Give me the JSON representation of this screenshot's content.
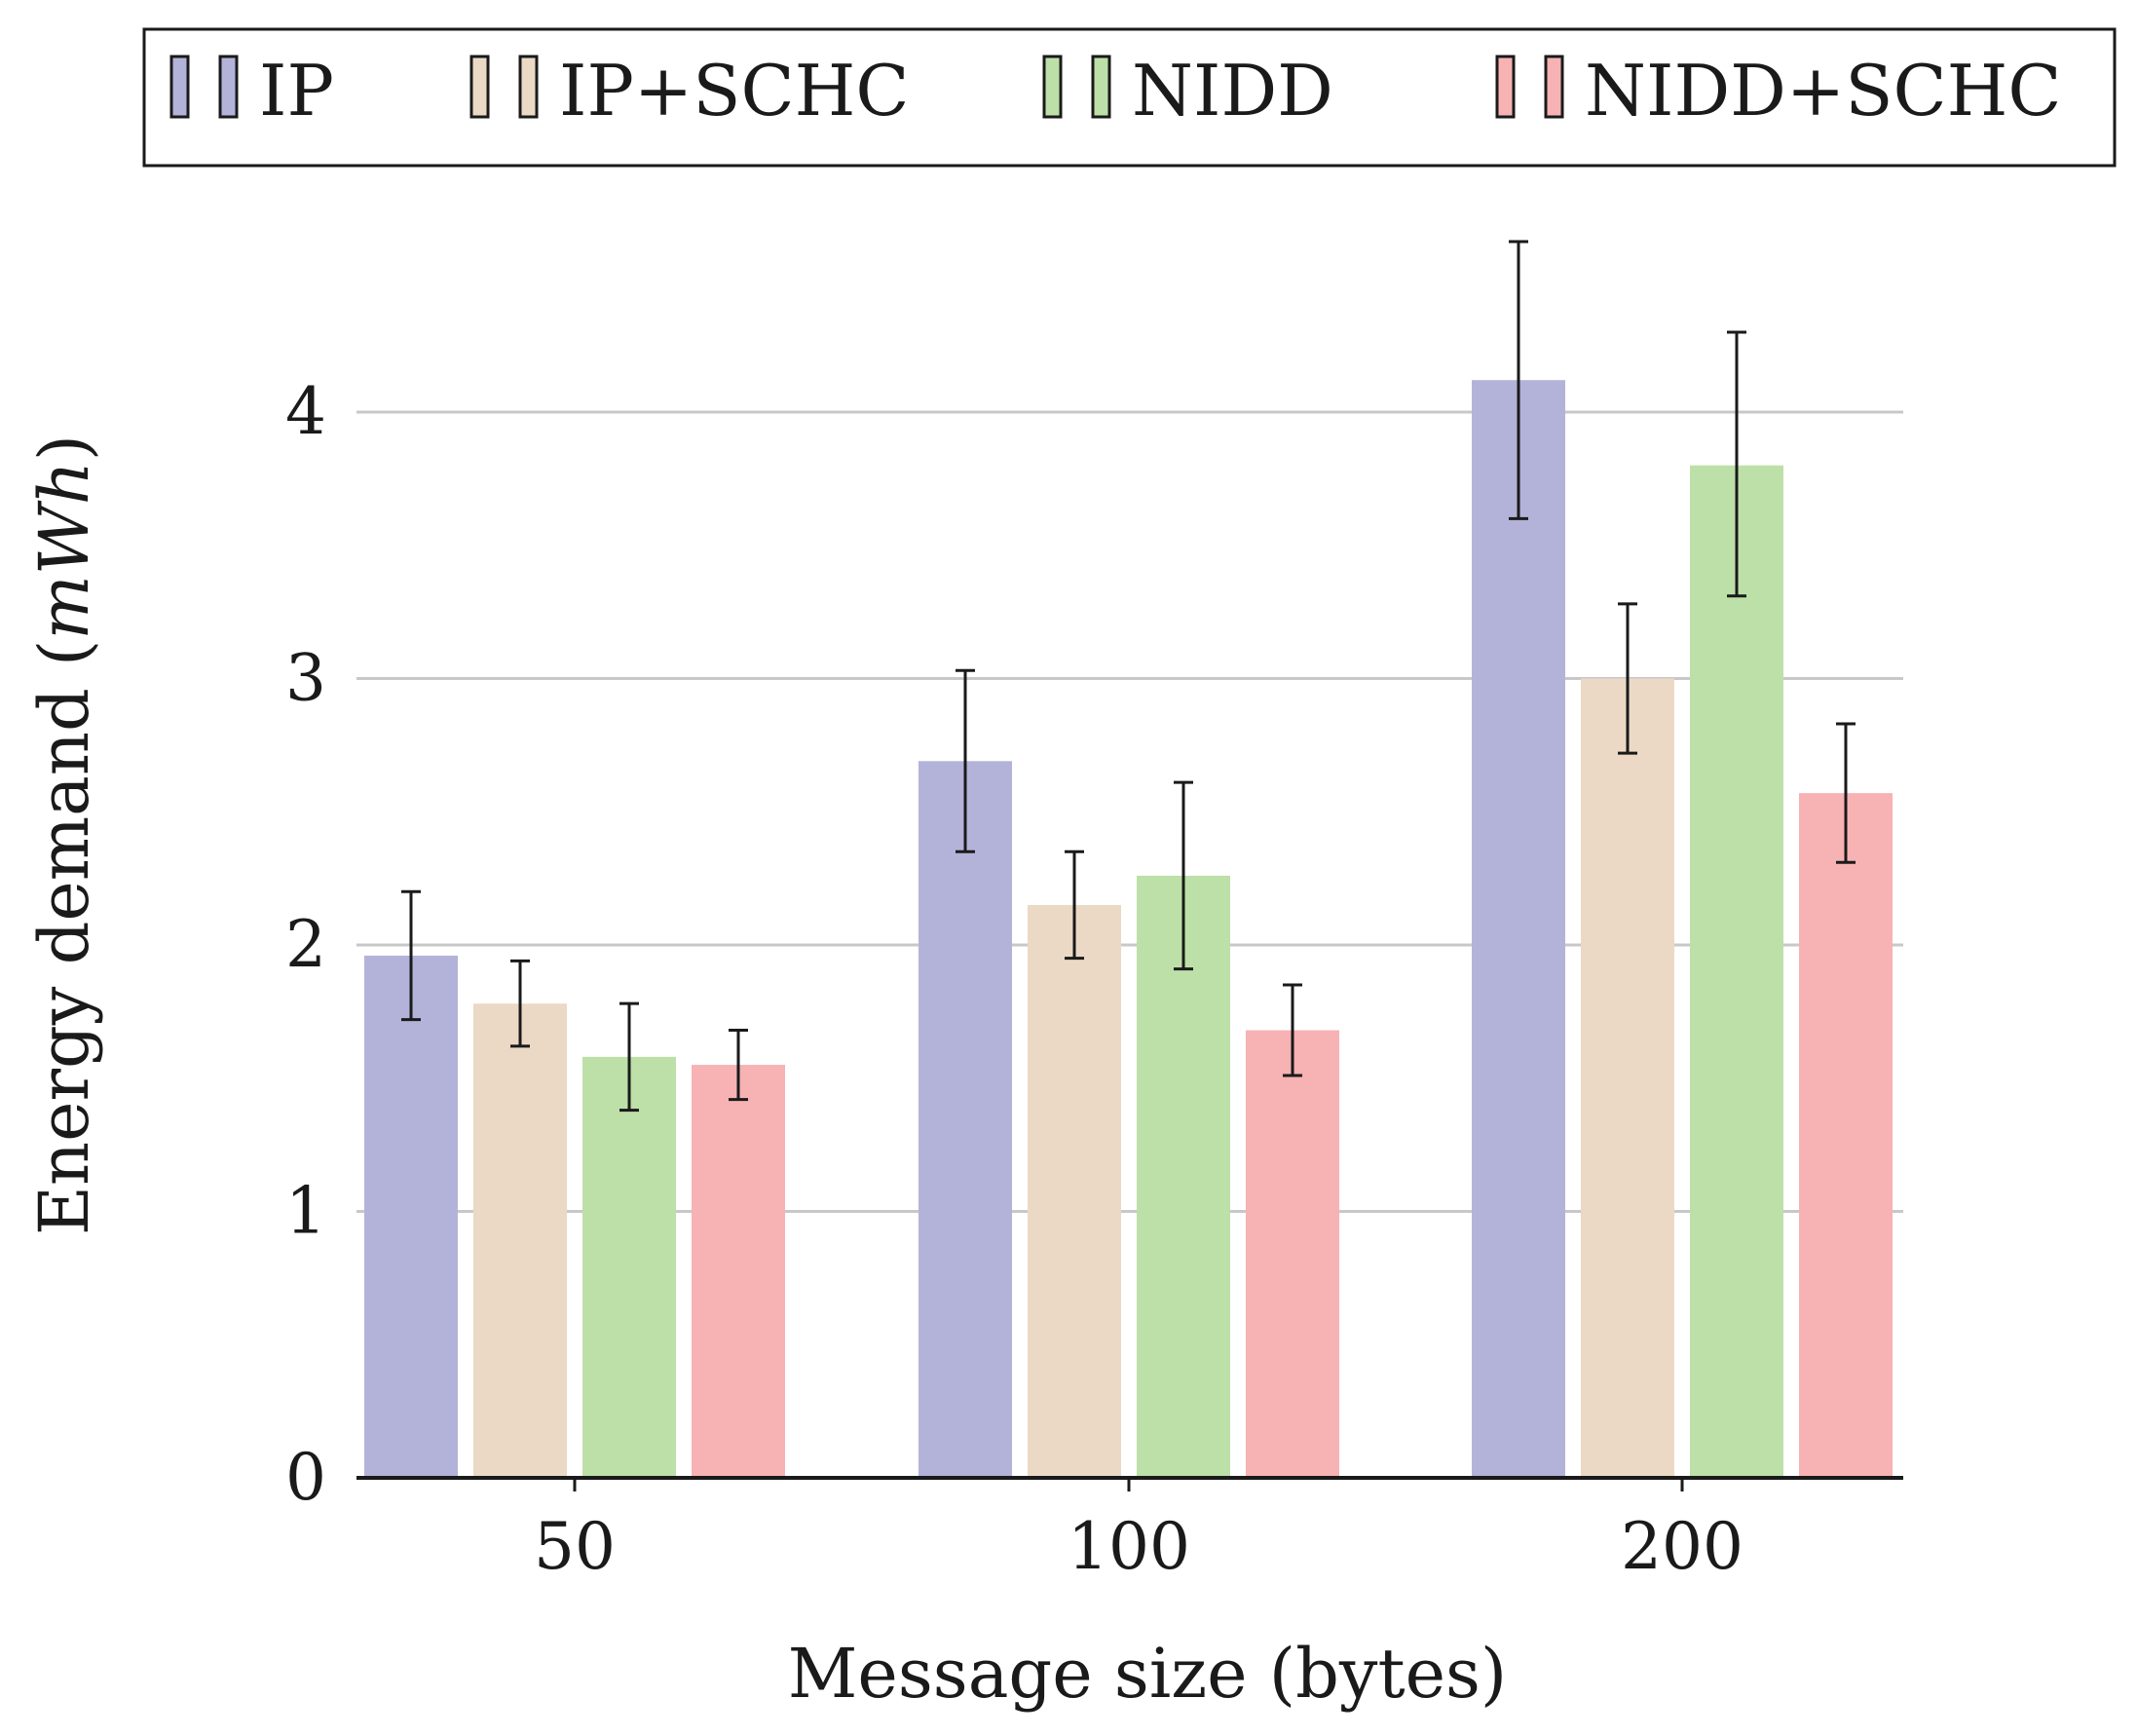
{
  "chart_data": {
    "type": "bar",
    "title": "",
    "xlabel": "Message size (bytes)",
    "ylabel": "Energy demand (",
    "ylabel_unit": "mWh",
    "ylabel_close": ")",
    "categories": [
      "50",
      "100",
      "200"
    ],
    "ylim": [
      0,
      4.6
    ],
    "yticks": [
      "0",
      "1",
      "2",
      "3",
      "4"
    ],
    "grid": true,
    "legend_position": "top",
    "series": [
      {
        "name": "IP",
        "color": "#b3b3da",
        "values": [
          1.96,
          2.69,
          4.12
        ],
        "error_low": [
          1.72,
          2.35,
          3.6
        ],
        "error_high": [
          2.2,
          3.03,
          4.64
        ]
      },
      {
        "name": "IP+SCHC",
        "color": "#ebd9c6",
        "values": [
          1.78,
          2.15,
          3.0
        ],
        "error_low": [
          1.62,
          1.95,
          2.72
        ],
        "error_high": [
          1.94,
          2.35,
          3.28
        ]
      },
      {
        "name": "NIDD",
        "color": "#bde0a8",
        "values": [
          1.58,
          2.26,
          3.8
        ],
        "error_low": [
          1.38,
          1.91,
          3.31
        ],
        "error_high": [
          1.78,
          2.61,
          4.3
        ]
      },
      {
        "name": "NIDD+SCHC",
        "color": "#f7b2b4",
        "values": [
          1.55,
          1.68,
          2.57
        ],
        "error_low": [
          1.42,
          1.51,
          2.31
        ],
        "error_high": [
          1.68,
          1.85,
          2.83
        ]
      }
    ]
  }
}
